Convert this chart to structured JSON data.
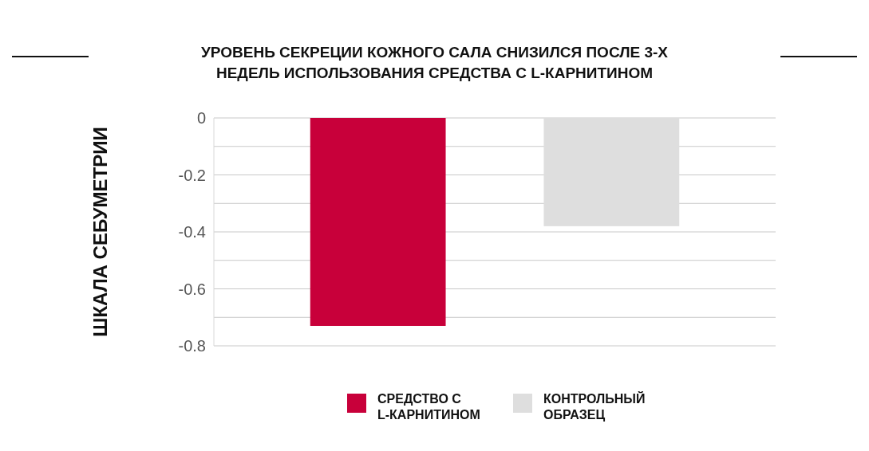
{
  "chart_data": {
    "type": "bar",
    "title": "УРОВЕНЬ СЕКРЕЦИИ КОЖНОГО САЛА СНИЗИЛСЯ ПОСЛЕ 3-Х\nНЕДЕЛЬ ИСПОЛЬЗОВАНИЯ СРЕДСТВА С L-КАРНИТИНОМ",
    "ylabel": "ШКАЛА СЕБУМЕТРИИ",
    "categories": [
      null
    ],
    "series": [
      {
        "name": "СРЕДСТВО С\nL-КАРНИТИНОМ",
        "color": "#c8003a",
        "values": [
          -0.73
        ]
      },
      {
        "name": "КОНТРОЛЬНЫЙ\nОБРАЗЕЦ",
        "color": "#dedede",
        "values": [
          -0.38
        ]
      }
    ],
    "ylim": [
      -0.8,
      0
    ],
    "yticks": [
      0,
      {
        "value": -0.1,
        "label": null
      },
      -0.2,
      {
        "value": -0.3,
        "label": null
      },
      -0.4,
      {
        "value": -0.5,
        "label": null
      },
      -0.6,
      {
        "value": -0.7,
        "label": null
      },
      -0.8
    ],
    "grid": "y",
    "legend": "bottom"
  }
}
